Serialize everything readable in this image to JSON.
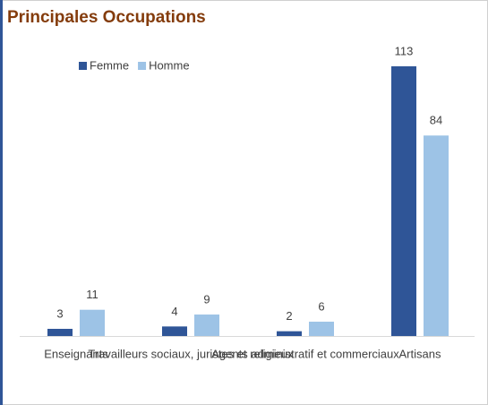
{
  "chart_data": {
    "type": "bar",
    "title": "Principales Occupations",
    "categories": [
      "Enseignants",
      "Travailleurs sociaux, juristes et religieux",
      "Agents administratif et commerciaux",
      "Artisans"
    ],
    "series": [
      {
        "name": "Femme",
        "color": "#2f5597",
        "values": [
          3,
          4,
          2,
          113
        ]
      },
      {
        "name": "Homme",
        "color": "#9dc3e6",
        "values": [
          11,
          9,
          6,
          84
        ]
      }
    ],
    "legend": "top-left"
  }
}
